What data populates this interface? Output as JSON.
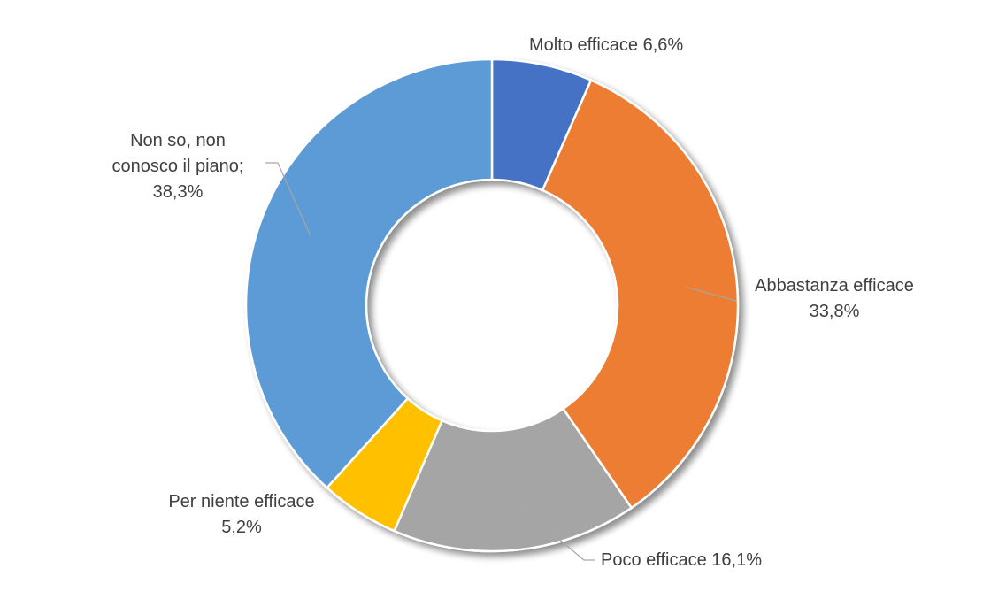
{
  "chart_data": {
    "type": "pie",
    "style": "donut",
    "title": "",
    "categories": [
      "Molto efficace",
      "Abbastanza efficace",
      "Poco efficace",
      "Per niente efficace",
      "Non so, non conosco il piano"
    ],
    "values": [
      6.6,
      33.8,
      16.1,
      5.2,
      38.3
    ],
    "unit": "%",
    "colors": [
      "#4472C4",
      "#ED7D31",
      "#A5A5A5",
      "#FFC000",
      "#5B9BD5"
    ],
    "labels": [
      {
        "lines": [
          "Molto efficace 6,6%"
        ]
      },
      {
        "lines": [
          "Abbastanza efficace",
          "33,8%"
        ]
      },
      {
        "lines": [
          "Poco efficace 16,1%"
        ]
      },
      {
        "lines": [
          "Per niente efficace",
          "5,2%"
        ]
      },
      {
        "lines": [
          "Non so, non",
          "conosco il piano;",
          "38,3%"
        ]
      }
    ],
    "legend": "none"
  }
}
